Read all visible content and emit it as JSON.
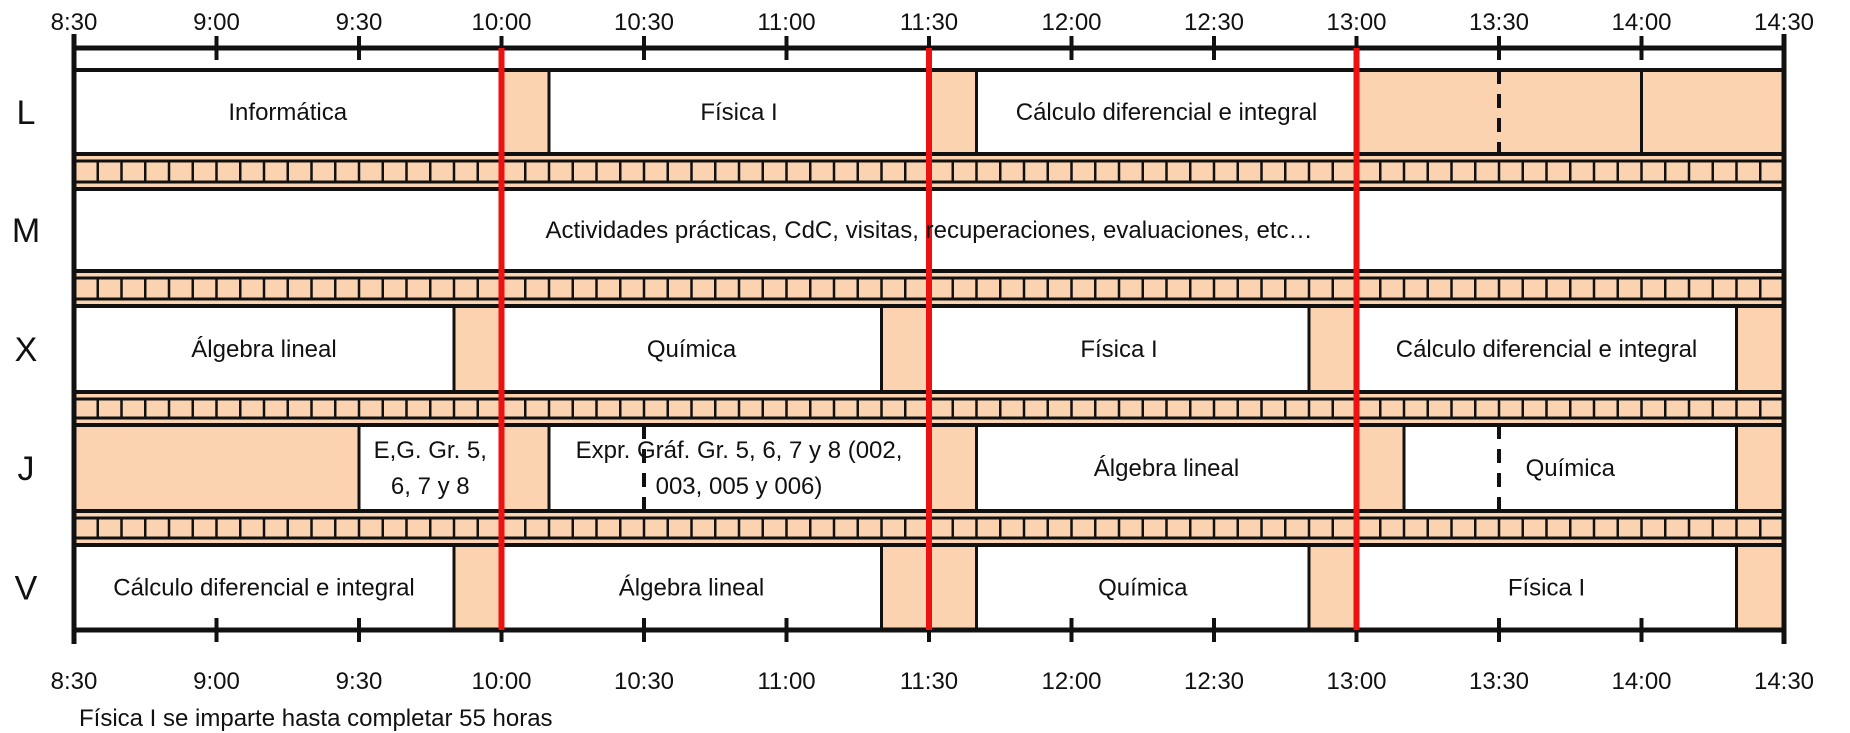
{
  "time_axis": {
    "start": "8:30",
    "end": "14:30",
    "labels": [
      "8:30",
      "9:00",
      "9:30",
      "10:00",
      "10:30",
      "11:00",
      "11:30",
      "12:00",
      "12:30",
      "13:00",
      "13:30",
      "14:00",
      "14:30"
    ]
  },
  "red_markers": [
    "10:00",
    "11:30",
    "13:00"
  ],
  "colors": {
    "break_fill": "#FBD3B1",
    "red_marker": "#EE1111",
    "line": "#111111",
    "cell_fill": "#FFFFFF"
  },
  "days": [
    {
      "label": "L",
      "blocks": [
        {
          "start": "8:30",
          "end": "10:00",
          "type": "class",
          "text": [
            "Informática"
          ]
        },
        {
          "start": "10:00",
          "end": "10:10",
          "type": "break"
        },
        {
          "start": "10:10",
          "end": "11:30",
          "type": "class",
          "text": [
            "Física I"
          ]
        },
        {
          "start": "11:30",
          "end": "11:40",
          "type": "break"
        },
        {
          "start": "11:40",
          "end": "13:00",
          "type": "class",
          "text": [
            "Cálculo diferencial e integral"
          ]
        },
        {
          "start": "13:00",
          "end": "14:00",
          "type": "break",
          "dashed_at": "13:30"
        },
        {
          "start": "14:00",
          "end": "14:30",
          "type": "break"
        }
      ]
    },
    {
      "label": "M",
      "blocks": [
        {
          "start": "8:30",
          "end": "14:30",
          "type": "class",
          "text": [
            "Actividades prácticas, CdC, visitas, recuperaciones, evaluaciones, etc…"
          ]
        }
      ]
    },
    {
      "label": "X",
      "blocks": [
        {
          "start": "8:30",
          "end": "9:50",
          "type": "class",
          "text": [
            "Álgebra lineal"
          ]
        },
        {
          "start": "9:50",
          "end": "10:00",
          "type": "break"
        },
        {
          "start": "10:00",
          "end": "11:20",
          "type": "class",
          "text": [
            "Química"
          ]
        },
        {
          "start": "11:20",
          "end": "11:30",
          "type": "break"
        },
        {
          "start": "11:30",
          "end": "12:50",
          "type": "class",
          "text": [
            "Física I"
          ]
        },
        {
          "start": "12:50",
          "end": "13:00",
          "type": "break"
        },
        {
          "start": "13:00",
          "end": "14:20",
          "type": "class",
          "text": [
            "Cálculo diferencial e integral"
          ]
        },
        {
          "start": "14:20",
          "end": "14:30",
          "type": "break"
        }
      ]
    },
    {
      "label": "J",
      "blocks": [
        {
          "start": "8:30",
          "end": "9:30",
          "type": "break"
        },
        {
          "start": "9:30",
          "end": "10:00",
          "type": "class",
          "text": [
            "E,G. Gr. 5,",
            "6, 7 y 8"
          ]
        },
        {
          "start": "10:00",
          "end": "10:10",
          "type": "break"
        },
        {
          "start": "10:10",
          "end": "11:30",
          "type": "class",
          "text": [
            "Expr. Gráf. Gr. 5, 6, 7  y 8 (002,",
            "003, 005 y 006)"
          ],
          "dashed_at": "10:30"
        },
        {
          "start": "11:30",
          "end": "11:40",
          "type": "break"
        },
        {
          "start": "11:40",
          "end": "13:00",
          "type": "class",
          "text": [
            "Álgebra lineal"
          ]
        },
        {
          "start": "13:00",
          "end": "13:10",
          "type": "break"
        },
        {
          "start": "13:10",
          "end": "14:20",
          "type": "class",
          "text": [
            "Química"
          ],
          "dashed_at": "13:30"
        },
        {
          "start": "14:20",
          "end": "14:30",
          "type": "break"
        }
      ]
    },
    {
      "label": "V",
      "blocks": [
        {
          "start": "8:30",
          "end": "9:50",
          "type": "class",
          "text": [
            "Cálculo diferencial e integral"
          ]
        },
        {
          "start": "9:50",
          "end": "10:00",
          "type": "break"
        },
        {
          "start": "10:00",
          "end": "11:20",
          "type": "class",
          "text": [
            "Álgebra lineal"
          ]
        },
        {
          "start": "11:20",
          "end": "11:40",
          "type": "break"
        },
        {
          "start": "11:40",
          "end": "12:50",
          "type": "class",
          "text": [
            "Química"
          ]
        },
        {
          "start": "12:50",
          "end": "13:00",
          "type": "break"
        },
        {
          "start": "13:00",
          "end": "14:20",
          "type": "class",
          "text": [
            "Física I"
          ]
        },
        {
          "start": "14:20",
          "end": "14:30",
          "type": "break"
        }
      ]
    }
  ],
  "footnote": "Física I se imparte hasta completar 55 horas"
}
